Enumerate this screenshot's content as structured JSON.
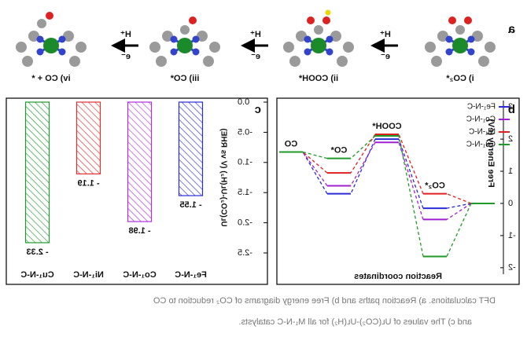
{
  "panel_a": {
    "label": "a",
    "steps": [
      "i) CO₂*",
      "ii) COOH*",
      "iii) CO*",
      "iv) CO + *"
    ],
    "arrows": [
      {
        "top": "H⁺",
        "bottom": "e⁻"
      },
      {
        "top": "H⁺",
        "bottom": "e⁻"
      },
      {
        "top": "H⁺",
        "bottom": "e⁻"
      }
    ]
  },
  "chart_data": [
    {
      "type": "line",
      "label": "b",
      "ylabel": "Free Energy (eV)",
      "xlabel": "Reaction coordinates",
      "categories": [
        null,
        "CO₂*",
        "COOH*",
        "CO*",
        "CO"
      ],
      "series": [
        {
          "name": "Fe₁-N-C",
          "color": "#2b2bd6",
          "values": [
            0,
            -0.15,
            2.0,
            0.3,
            1.6
          ]
        },
        {
          "name": "Co₁-N-C",
          "color": "#a020d0",
          "values": [
            0,
            -0.5,
            1.9,
            0.55,
            1.6
          ]
        },
        {
          "name": "Ni₁-N-C",
          "color": "#e02020",
          "values": [
            0,
            0.3,
            2.15,
            0.95,
            1.6
          ]
        },
        {
          "name": "Cu₁-N-C",
          "color": "#1f9a2a",
          "values": [
            0,
            -1.65,
            2.1,
            1.4,
            1.6
          ]
        }
      ],
      "ylim": [
        -2.2,
        3.2
      ],
      "yticks": [
        -2,
        -1,
        0,
        1,
        2,
        3
      ],
      "legend": "upper left"
    },
    {
      "type": "bar",
      "label": "c",
      "ylabel": "Uʟ(CO₂)-Uʟ(H₂) (V vs RHE)",
      "categories": [
        "Fe₁-N-C",
        "Co₁-N-C",
        "Ni₁-N-C",
        "Cu₁-N-C"
      ],
      "values": [
        -1.55,
        -1.98,
        -1.19,
        -2.33
      ],
      "value_labels": [
        "- 1.55",
        "- 1.98",
        "- 1.19",
        "- 2.33"
      ],
      "colors": [
        "#2b2bd6",
        "#b030e0",
        "#e03030",
        "#1f9a2a"
      ],
      "ylim": [
        -2.5,
        0
      ],
      "yticks": [
        {
          "value": 0,
          "label": "0.0"
        },
        -0.5,
        {
          "value": -1,
          "label": "-1.0"
        },
        -1.5,
        {
          "value": -2,
          "label": "-2.0"
        },
        -2.5
      ]
    }
  ],
  "caption": [
    "DFT calculations. a) Reaction paths and b) Free energy diagrams of CO₂ reduction to CO",
    "and c) The values of Uʟ(CO₂)-Uʟ(H₂) for all M₁-N-C catalysts."
  ]
}
